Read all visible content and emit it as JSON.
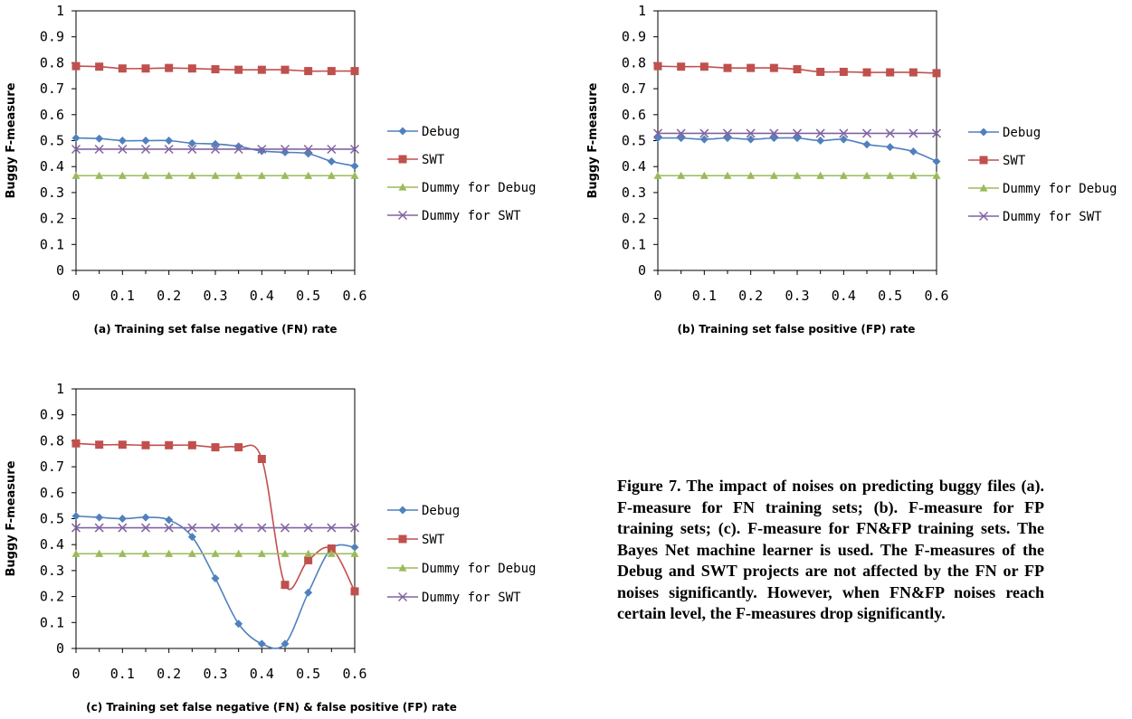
{
  "colors": {
    "Debug": "#4f81bd",
    "SWT": "#c0504d",
    "Dummy for Debug": "#9bbb59",
    "Dummy for SWT": "#8064a2"
  },
  "caption": "Figure 7. The impact of noises on predicting buggy files (a). F-measure for FN training sets; (b). F-measure for FP training sets; (c). F-measure for FN&FP training sets. The Bayes Net machine learner is used. The F-measures of the Debug and SWT projects are not affected by the FN or FP noises significantly. However, when FN&FP noises reach certain level, the F-measures drop significantly.",
  "chart_data": [
    {
      "type": "line",
      "title": "",
      "xlabel": "(a) Training set false negative (FN) rate",
      "ylabel": "Buggy F-measure",
      "xlim": [
        0,
        0.6
      ],
      "ylim": [
        0,
        1
      ],
      "x_ticks": [
        "0",
        "0.1",
        "0.2",
        "0.3",
        "0.4",
        "0.5",
        "0.6"
      ],
      "y_ticks": [
        "0",
        "0.1",
        "0.2",
        "0.3",
        "0.4",
        "0.5",
        "0.6",
        "0.7",
        "0.8",
        "0.9",
        "1"
      ],
      "legend_position": "right",
      "x": [
        0,
        0.05,
        0.1,
        0.15,
        0.2,
        0.25,
        0.3,
        0.35,
        0.4,
        0.45,
        0.5,
        0.55,
        0.6
      ],
      "series": [
        {
          "name": "Debug",
          "marker": "diamond",
          "values": [
            0.51,
            0.508,
            0.5,
            0.5,
            0.5,
            0.49,
            0.487,
            0.478,
            0.46,
            0.455,
            0.45,
            0.42,
            0.402
          ]
        },
        {
          "name": "SWT",
          "marker": "square",
          "values": [
            0.787,
            0.785,
            0.778,
            0.778,
            0.78,
            0.778,
            0.775,
            0.773,
            0.773,
            0.773,
            0.768,
            0.768,
            0.768
          ]
        },
        {
          "name": "Dummy for Debug",
          "marker": "triangle",
          "values": [
            0.365,
            0.365,
            0.365,
            0.365,
            0.365,
            0.365,
            0.365,
            0.365,
            0.365,
            0.365,
            0.365,
            0.365,
            0.365
          ]
        },
        {
          "name": "Dummy for SWT",
          "marker": "x",
          "values": [
            0.467,
            0.467,
            0.467,
            0.467,
            0.467,
            0.467,
            0.467,
            0.467,
            0.467,
            0.467,
            0.467,
            0.467,
            0.467
          ]
        }
      ]
    },
    {
      "type": "line",
      "title": "",
      "xlabel": "(b) Training set false positive (FP) rate",
      "ylabel": "Buggy F-measure",
      "xlim": [
        0,
        0.6
      ],
      "ylim": [
        0,
        1
      ],
      "x_ticks": [
        "0",
        "0.1",
        "0.2",
        "0.3",
        "0.4",
        "0.5",
        "0.6"
      ],
      "y_ticks": [
        "0",
        "0.1",
        "0.2",
        "0.3",
        "0.4",
        "0.5",
        "0.6",
        "0.7",
        "0.8",
        "0.9",
        "1"
      ],
      "legend_position": "right",
      "x": [
        0,
        0.05,
        0.1,
        0.15,
        0.2,
        0.25,
        0.3,
        0.35,
        0.4,
        0.45,
        0.5,
        0.55,
        0.6
      ],
      "series": [
        {
          "name": "Debug",
          "marker": "diamond",
          "values": [
            0.51,
            0.51,
            0.505,
            0.51,
            0.505,
            0.51,
            0.51,
            0.5,
            0.505,
            0.485,
            0.475,
            0.458,
            0.42
          ]
        },
        {
          "name": "SWT",
          "marker": "square",
          "values": [
            0.787,
            0.785,
            0.785,
            0.78,
            0.78,
            0.78,
            0.775,
            0.765,
            0.765,
            0.763,
            0.763,
            0.763,
            0.76
          ]
        },
        {
          "name": "Dummy for Debug",
          "marker": "triangle",
          "values": [
            0.365,
            0.365,
            0.365,
            0.365,
            0.365,
            0.365,
            0.365,
            0.365,
            0.365,
            0.365,
            0.365,
            0.365,
            0.365
          ]
        },
        {
          "name": "Dummy for SWT",
          "marker": "x",
          "values": [
            0.528,
            0.528,
            0.528,
            0.528,
            0.528,
            0.528,
            0.528,
            0.528,
            0.528,
            0.528,
            0.528,
            0.528,
            0.528
          ]
        }
      ]
    },
    {
      "type": "line",
      "title": "",
      "xlabel": "(c) Training set false negative (FN) & false positive (FP) rate",
      "ylabel": "Buggy F-measure",
      "xlim": [
        0,
        0.6
      ],
      "ylim": [
        0,
        1
      ],
      "x_ticks": [
        "0",
        "0.1",
        "0.2",
        "0.3",
        "0.4",
        "0.5",
        "0.6"
      ],
      "y_ticks": [
        "0",
        "0.1",
        "0.2",
        "0.3",
        "0.4",
        "0.5",
        "0.6",
        "0.7",
        "0.8",
        "0.9",
        "1"
      ],
      "legend_position": "right",
      "x": [
        0,
        0.05,
        0.1,
        0.15,
        0.2,
        0.25,
        0.3,
        0.35,
        0.4,
        0.45,
        0.5,
        0.55,
        0.6
      ],
      "series": [
        {
          "name": "Debug",
          "marker": "diamond",
          "values": [
            0.51,
            0.505,
            0.5,
            0.505,
            0.495,
            0.43,
            0.27,
            0.095,
            0.018,
            0.018,
            0.215,
            0.385,
            0.39
          ]
        },
        {
          "name": "SWT",
          "marker": "square",
          "values": [
            0.79,
            0.785,
            0.785,
            0.783,
            0.783,
            0.783,
            0.775,
            0.775,
            0.73,
            0.245,
            0.34,
            0.385,
            0.22
          ]
        },
        {
          "name": "Dummy for Debug",
          "marker": "triangle",
          "values": [
            0.365,
            0.365,
            0.365,
            0.365,
            0.365,
            0.365,
            0.365,
            0.365,
            0.365,
            0.365,
            0.365,
            0.365,
            0.365
          ]
        },
        {
          "name": "Dummy for SWT",
          "marker": "x",
          "values": [
            0.465,
            0.465,
            0.465,
            0.465,
            0.465,
            0.465,
            0.465,
            0.465,
            0.465,
            0.465,
            0.465,
            0.465,
            0.465
          ]
        }
      ]
    }
  ]
}
